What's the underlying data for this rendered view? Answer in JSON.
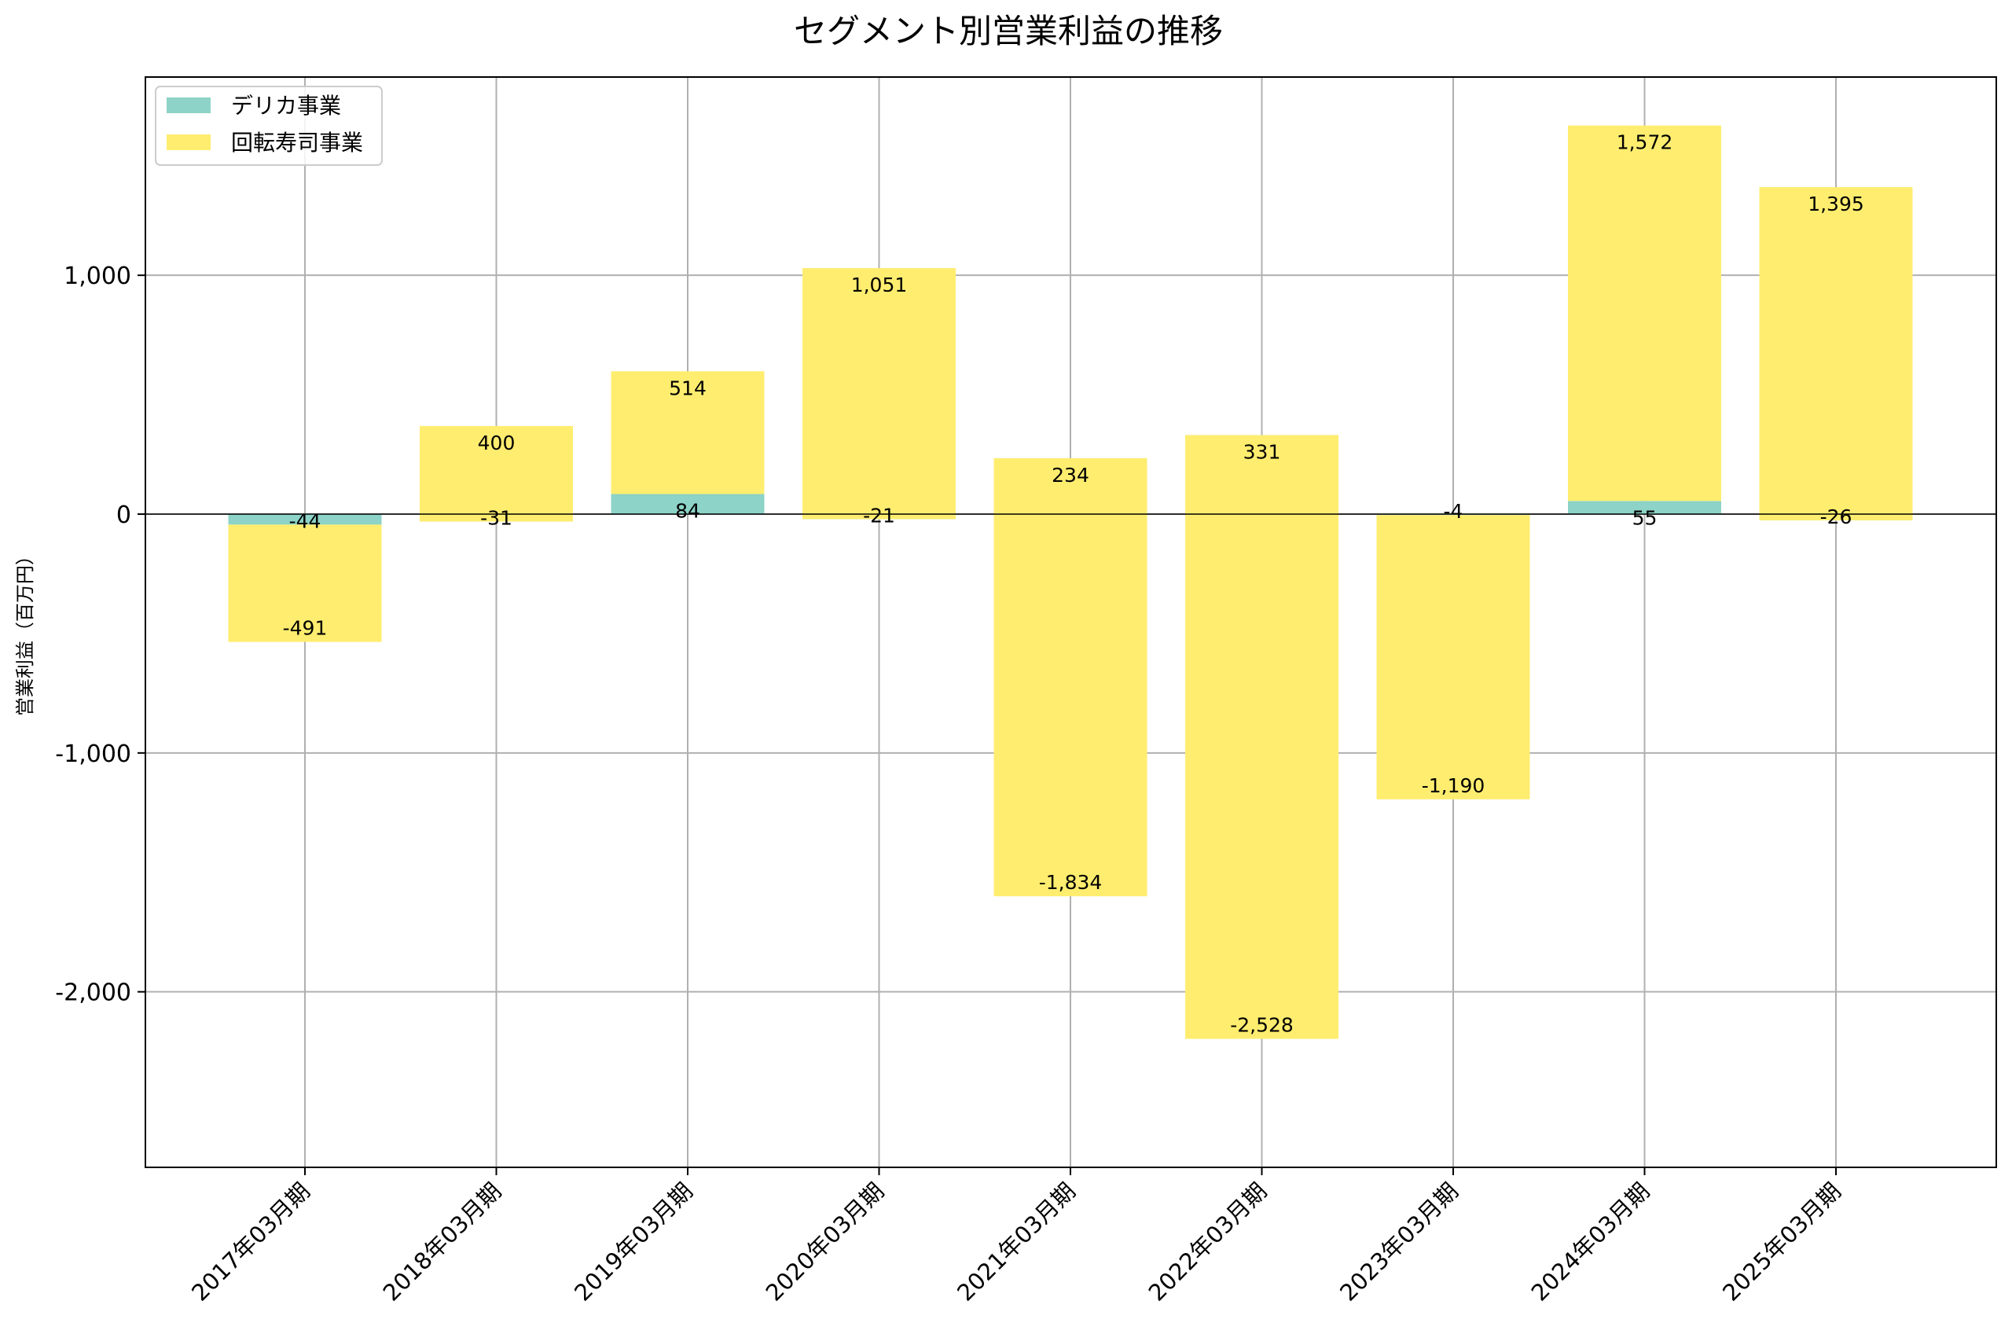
{
  "chart_data": {
    "type": "bar",
    "stacked": true,
    "title": "セグメント別営業利益の推移",
    "xlabel": "",
    "ylabel": "営業利益（百万円）",
    "categories": [
      "2017年03月期",
      "2018年03月期",
      "2019年03月期",
      "2020年03月期",
      "2021年03月期",
      "2022年03月期",
      "2023年03月期",
      "2024年03月期",
      "2025年03月期"
    ],
    "series": [
      {
        "name": "デリカ事業",
        "color": "#8dd3c7",
        "values": [
          -44,
          -31,
          84,
          -21,
          234,
          331,
          -4,
          55,
          -26
        ],
        "labels": [
          "-44",
          "-31",
          "84",
          "-21",
          "234",
          "331",
          "-4",
          "55",
          "-26"
        ]
      },
      {
        "name": "回転寿司事業",
        "color": "#ffed6f",
        "values": [
          -491,
          400,
          514,
          1051,
          -1834,
          -2528,
          -1190,
          1572,
          1395
        ],
        "labels": [
          "-491",
          "400",
          "514",
          "1,051",
          "-1,834",
          "-2,528",
          "-1,190",
          "1,572",
          "1,395"
        ]
      }
    ],
    "ylim": [
      -2735,
      1830
    ],
    "yticks": [
      -2000,
      -1000,
      0,
      1000
    ],
    "ytick_labels": [
      "-2,000",
      "-1,000",
      "0",
      "1,000"
    ],
    "grid": true,
    "legend_position": "top-left"
  }
}
